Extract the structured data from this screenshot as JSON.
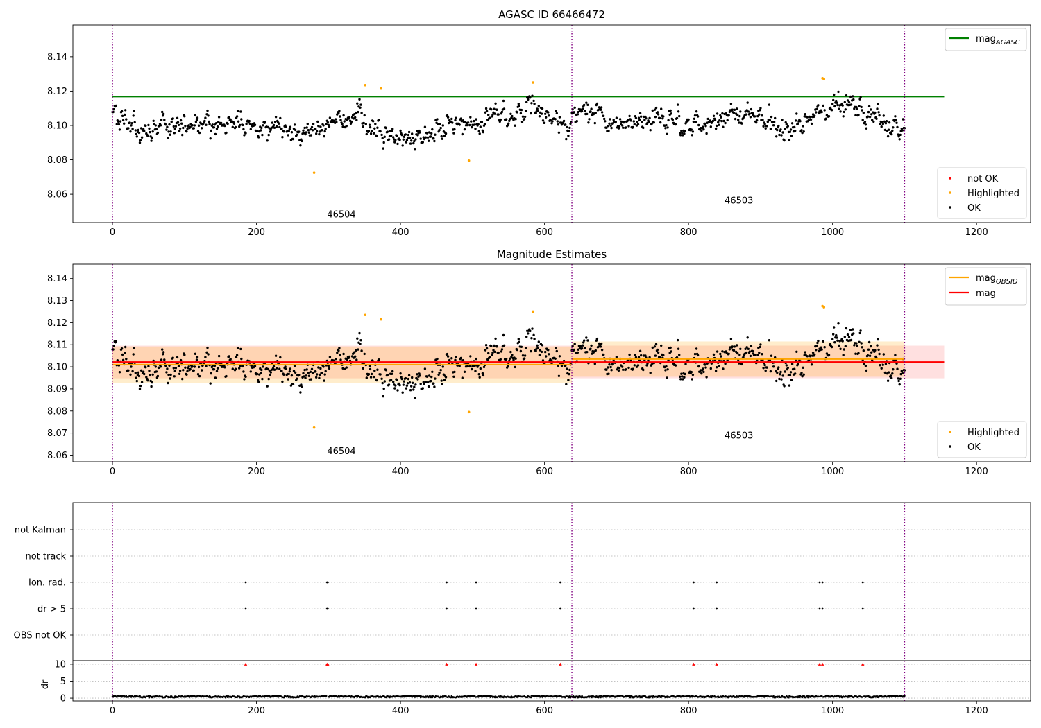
{
  "colors": {
    "ok": "#000000",
    "highlighted": "#ffa500",
    "not_ok": "#ff0000",
    "agasc_line": "#008000",
    "obsid_line": "#ffa500",
    "mag_line": "#ff0000",
    "obs_boundary": "#800080",
    "grid": "#b0b0b0"
  },
  "chart_data": [
    {
      "id": "panel1",
      "type": "scatter",
      "title": "AGASC ID 66466472",
      "xlim": [
        -55,
        1275
      ],
      "ylim": [
        8.0435,
        8.1585
      ],
      "xticks": [
        0,
        200,
        400,
        600,
        800,
        1000,
        1200
      ],
      "xtick_labels": [
        "0",
        "200",
        "400",
        "600",
        "800",
        "1000",
        "1200"
      ],
      "yticks": [
        8.06,
        8.08,
        8.1,
        8.12,
        8.14
      ],
      "ytick_labels": [
        "8.06",
        "8.08",
        "8.10",
        "8.12",
        "8.14"
      ],
      "obs_boundaries": [
        0,
        638,
        1100
      ],
      "obs_labels": [
        {
          "text": "46504",
          "x": 318,
          "y": 8.0465
        },
        {
          "text": "46503",
          "x": 870,
          "y": 8.0545
        }
      ],
      "hlines": [
        {
          "name": "mag_AGASC",
          "main": "mag",
          "sub": "AGASC",
          "y": 8.1168,
          "x0": 0,
          "x1": 1155,
          "color": "#008000"
        }
      ],
      "ok_series": {
        "name": "OK",
        "description": "black points, 1100 samples",
        "segment1": {
          "x_range": [
            0,
            637
          ],
          "mean_trend": [
            [
              0,
              8.108
            ],
            [
              50,
              8.098
            ],
            [
              120,
              8.102
            ],
            [
              200,
              8.099
            ],
            [
              280,
              8.097
            ],
            [
              340,
              8.106
            ],
            [
              380,
              8.091
            ],
            [
              450,
              8.097
            ],
            [
              530,
              8.102
            ],
            [
              585,
              8.112
            ],
            [
              637,
              8.097
            ]
          ],
          "scatter": 0.0065
        },
        "segment2": {
          "x_range": [
            638,
            1100
          ],
          "mean_trend": [
            [
              638,
              8.108
            ],
            [
              700,
              8.101
            ],
            [
              760,
              8.104
            ],
            [
              800,
              8.099
            ],
            [
              860,
              8.106
            ],
            [
              940,
              8.097
            ],
            [
              990,
              8.11
            ],
            [
              1030,
              8.112
            ],
            [
              1070,
              8.102
            ],
            [
              1100,
              8.098
            ]
          ],
          "scatter": 0.0065
        }
      },
      "highlighted": {
        "name": "Highlighted",
        "x": [
          280,
          351,
          373,
          495,
          584,
          986,
          988
        ],
        "y": [
          8.0725,
          8.1235,
          8.1215,
          8.0795,
          8.125,
          8.1275,
          8.127
        ]
      },
      "not_ok": {
        "name": "not OK",
        "x": [],
        "y": []
      },
      "legend_lines": {
        "position": "upper right",
        "entries": [
          {
            "main": "mag",
            "sub": "AGASC",
            "color": "#008000"
          }
        ]
      },
      "legend_points": {
        "position": "lower right",
        "entries": [
          {
            "label": "not OK",
            "color": "#ff0000"
          },
          {
            "label": "Highlighted",
            "color": "#ffa500"
          },
          {
            "label": "OK",
            "color": "#000000"
          }
        ]
      }
    },
    {
      "id": "panel2",
      "type": "scatter",
      "title": "Magnitude Estimates",
      "xlim": [
        -55,
        1275
      ],
      "ylim": [
        8.057,
        8.1465
      ],
      "xticks": [
        0,
        200,
        400,
        600,
        800,
        1000,
        1200
      ],
      "xtick_labels": [
        "0",
        "200",
        "400",
        "600",
        "800",
        "1000",
        "1200"
      ],
      "yticks": [
        8.06,
        8.07,
        8.08,
        8.09,
        8.1,
        8.11,
        8.12,
        8.13,
        8.14
      ],
      "ytick_labels": [
        "8.06",
        "8.07",
        "8.08",
        "8.09",
        "8.10",
        "8.11",
        "8.12",
        "8.13",
        "8.14"
      ],
      "obs_boundaries": [
        0,
        638,
        1100
      ],
      "obs_labels": [
        {
          "text": "46504",
          "x": 318,
          "y": 8.0605
        },
        {
          "text": "46503",
          "x": 870,
          "y": 8.0675
        }
      ],
      "mag": {
        "name": "mag",
        "y": 8.1022,
        "band": [
          8.0948,
          8.1096
        ],
        "x0": 0,
        "x1": 1155,
        "color": "#ff0000"
      },
      "mag_obsid": [
        {
          "name": "mag_OBSID",
          "x0": 0,
          "x1": 638,
          "y": 8.101,
          "band": [
            8.0928,
            8.1092
          ]
        },
        {
          "name": "mag_OBSID",
          "x0": 638,
          "x1": 1100,
          "y": 8.1035,
          "band": [
            8.0955,
            8.1115
          ]
        }
      ],
      "ok_series": {
        "name": "OK",
        "same_as": "panel1"
      },
      "highlighted": {
        "name": "Highlighted",
        "x": [
          280,
          351,
          373,
          495,
          584,
          986,
          988
        ],
        "y": [
          8.0725,
          8.1235,
          8.1215,
          8.0795,
          8.125,
          8.1275,
          8.127
        ]
      },
      "legend_lines": {
        "position": "upper right",
        "entries": [
          {
            "main": "mag",
            "sub": "OBSID",
            "color": "#ffa500"
          },
          {
            "main": "mag",
            "sub": "",
            "color": "#ff0000"
          }
        ]
      },
      "legend_points": {
        "position": "lower right",
        "entries": [
          {
            "label": "Highlighted",
            "color": "#ffa500"
          },
          {
            "label": "OK",
            "color": "#000000"
          }
        ]
      }
    },
    {
      "id": "panel3",
      "type": "scatter",
      "title": "",
      "xlim": [
        -55,
        1275
      ],
      "xticks": [
        0,
        200,
        400,
        600,
        800,
        1000,
        1200
      ],
      "xtick_labels": [
        "0",
        "200",
        "400",
        "600",
        "800",
        "1000",
        "1200"
      ],
      "flag_rows": [
        "OBS not OK",
        "dr > 5",
        "Ion. rad.",
        "not track",
        "not Kalman"
      ],
      "obs_boundaries": [
        0,
        638,
        1100
      ],
      "flag_points": {
        "Ion. rad.": [
          185,
          298,
          299,
          464,
          505,
          622,
          807,
          839,
          982,
          986,
          1042
        ],
        "dr > 5": [
          185,
          298,
          299,
          464,
          505,
          622,
          807,
          839,
          982,
          986,
          1042
        ],
        "OBS not OK": [],
        "not track": [],
        "not Kalman": []
      },
      "dr_panel": {
        "ylabel": "dr",
        "yticks": [
          0,
          5,
          10
        ],
        "ytick_labels": [
          "0",
          "5",
          "10"
        ],
        "ylim": [
          -0.8,
          11
        ],
        "clipped_at": 10,
        "clipped_x": [
          185,
          298,
          299,
          464,
          505,
          622,
          807,
          839,
          982,
          986,
          1042
        ],
        "baseline": 0.4
      }
    }
  ]
}
